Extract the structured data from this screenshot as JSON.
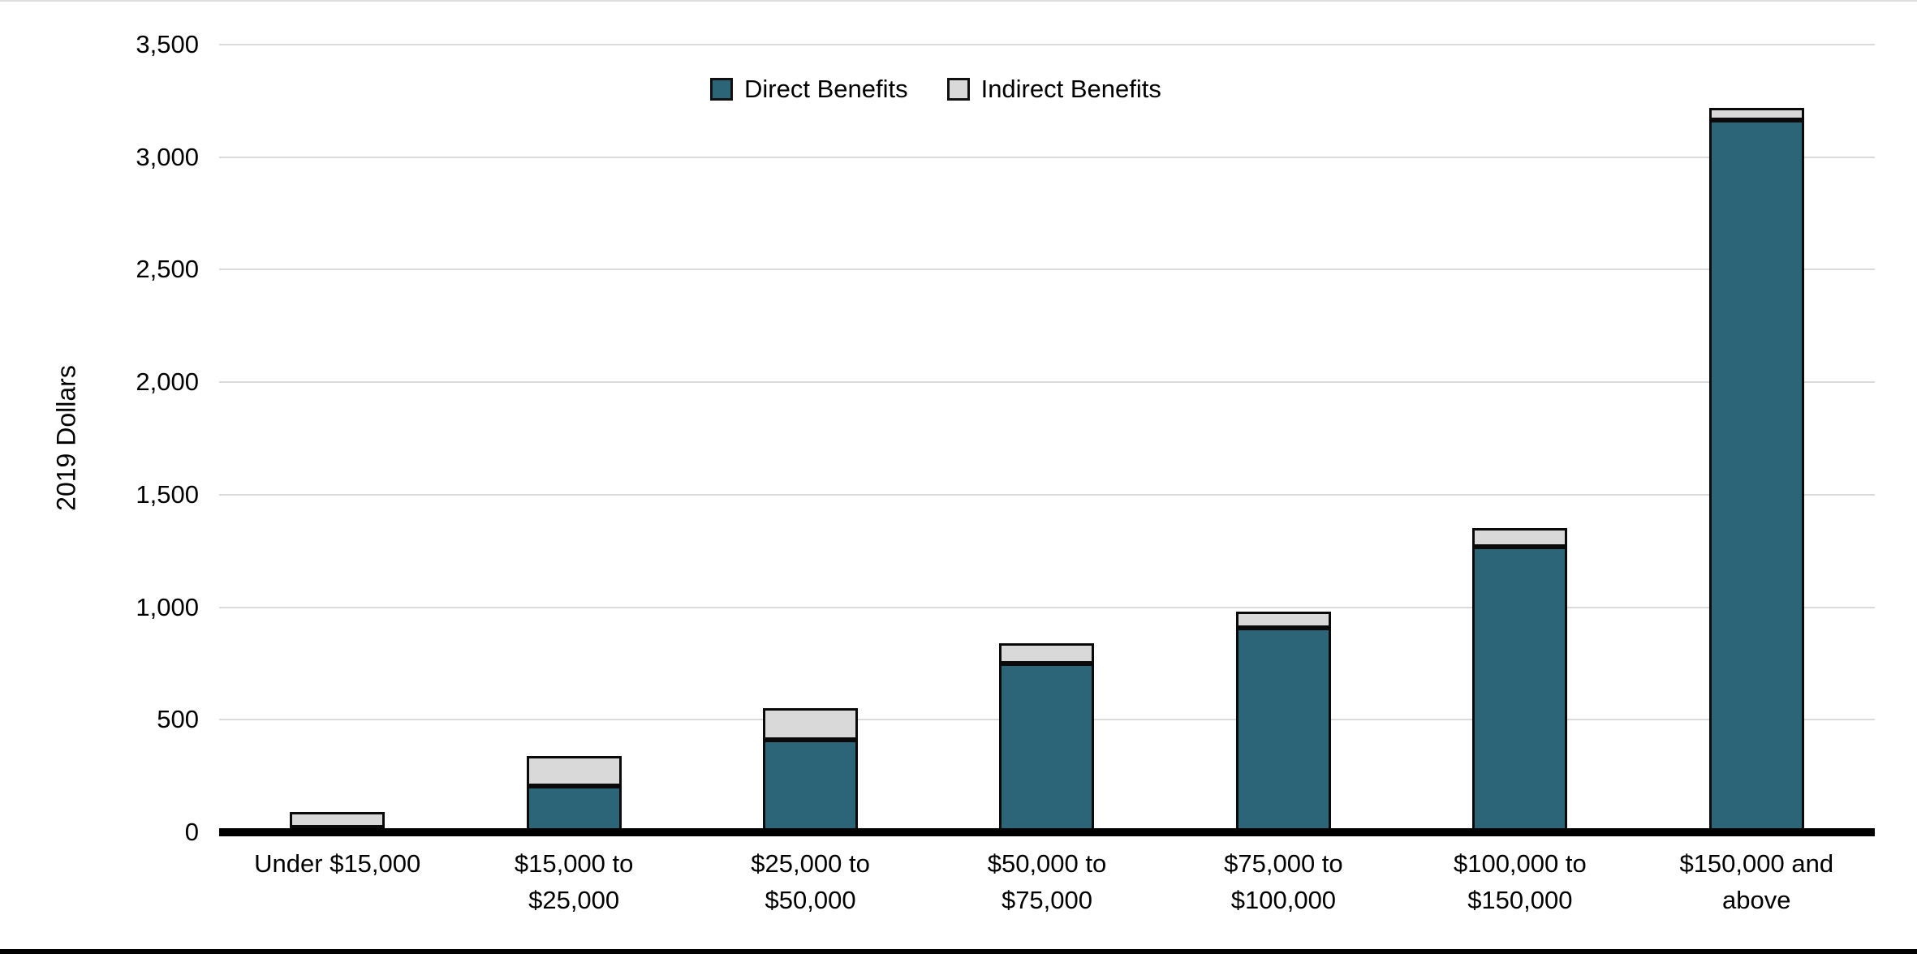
{
  "chart_data": {
    "type": "bar",
    "stacked": true,
    "title": "",
    "ylabel": "2019 Dollars",
    "xlabel": "",
    "ylim": [
      0,
      3500
    ],
    "ytick_interval": 500,
    "ytick_labels": [
      "0",
      "500",
      "1,000",
      "1,500",
      "2,000",
      "2,500",
      "3,000",
      "3,500"
    ],
    "grid": true,
    "legend_position": "top",
    "categories": [
      "Under $15,000",
      "$15,000 to\n$25,000",
      "$25,000 to\n$50,000",
      "$50,000 to\n$75,000",
      "$75,000 to\n$100,000",
      "$100,000 to\n$150,000",
      "$150,000 and\nabove"
    ],
    "series": [
      {
        "name": "Direct Benefits",
        "color": "#2B6577",
        "values": [
          10,
          205,
          410,
          750,
          910,
          1270,
          3165
        ]
      },
      {
        "name": "Indirect Benefits",
        "color": "#D9D9D9",
        "values": [
          70,
          135,
          140,
          90,
          70,
          80,
          55
        ]
      }
    ],
    "stack_totals": [
      80,
      340,
      550,
      840,
      980,
      1350,
      3220
    ]
  },
  "colors": {
    "direct": "#2B6577",
    "indirect": "#D9D9D9",
    "gridline": "#DADADA",
    "axis": "#000000",
    "segment_border": "#0A0A0A",
    "background": "#FFFFFF"
  }
}
